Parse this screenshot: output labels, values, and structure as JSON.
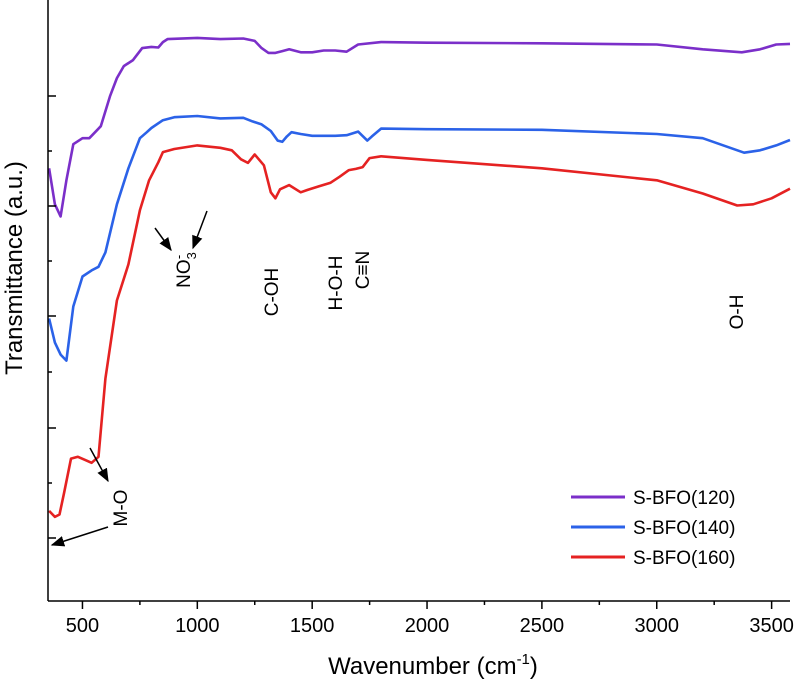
{
  "chart_data": {
    "type": "line",
    "title": "",
    "xlabel": "Wavenumber (cm",
    "xlabel_sup": "-1",
    "xlabel_close": ")",
    "ylabel": "Transmittance (a.u.)",
    "xlim": [
      350,
      3580
    ],
    "ylim": [
      0,
      100
    ],
    "x_ticks": [
      500,
      1000,
      1500,
      2000,
      2500,
      3000,
      3500
    ],
    "y_ticks_show_labels": false,
    "legend_position": "bottom-right",
    "series": [
      {
        "name": "S-BFO(120)",
        "color": "#7b2fc9",
        "points": [
          [
            355,
            72
          ],
          [
            380,
            66
          ],
          [
            405,
            64
          ],
          [
            430,
            70
          ],
          [
            460,
            76
          ],
          [
            500,
            77
          ],
          [
            530,
            77
          ],
          [
            555,
            78
          ],
          [
            580,
            79
          ],
          [
            620,
            84
          ],
          [
            650,
            87
          ],
          [
            680,
            89
          ],
          [
            720,
            90
          ],
          [
            760,
            92
          ],
          [
            800,
            92.2
          ],
          [
            830,
            92.1
          ],
          [
            850,
            93
          ],
          [
            870,
            93.5
          ],
          [
            1000,
            93.7
          ],
          [
            1100,
            93.5
          ],
          [
            1200,
            93.6
          ],
          [
            1250,
            93.2
          ],
          [
            1280,
            92
          ],
          [
            1310,
            91.2
          ],
          [
            1340,
            91.2
          ],
          [
            1370,
            91.5
          ],
          [
            1400,
            91.8
          ],
          [
            1450,
            91.3
          ],
          [
            1500,
            91.3
          ],
          [
            1550,
            91.6
          ],
          [
            1600,
            91.6
          ],
          [
            1650,
            91.4
          ],
          [
            1700,
            92.6
          ],
          [
            1800,
            93
          ],
          [
            2000,
            92.9
          ],
          [
            2500,
            92.8
          ],
          [
            3000,
            92.6
          ],
          [
            3200,
            91.8
          ],
          [
            3370,
            91.3
          ],
          [
            3450,
            91.8
          ],
          [
            3520,
            92.6
          ],
          [
            3580,
            92.7
          ]
        ]
      },
      {
        "name": "S-BFO(140)",
        "color": "#2b62e8",
        "points": [
          [
            355,
            47
          ],
          [
            380,
            43
          ],
          [
            405,
            41
          ],
          [
            430,
            40
          ],
          [
            460,
            49
          ],
          [
            500,
            54
          ],
          [
            540,
            55
          ],
          [
            570,
            55.6
          ],
          [
            600,
            58
          ],
          [
            650,
            66
          ],
          [
            700,
            72
          ],
          [
            750,
            77
          ],
          [
            780,
            78
          ],
          [
            800,
            78.7
          ],
          [
            850,
            80
          ],
          [
            900,
            80.5
          ],
          [
            1000,
            80.7
          ],
          [
            1100,
            80.3
          ],
          [
            1200,
            80.4
          ],
          [
            1240,
            79.8
          ],
          [
            1280,
            79.3
          ],
          [
            1320,
            78.2
          ],
          [
            1350,
            76.6
          ],
          [
            1370,
            76.4
          ],
          [
            1390,
            77.3
          ],
          [
            1410,
            78
          ],
          [
            1450,
            77.7
          ],
          [
            1500,
            77.4
          ],
          [
            1550,
            77.4
          ],
          [
            1600,
            77.4
          ],
          [
            1650,
            77.5
          ],
          [
            1700,
            78.1
          ],
          [
            1740,
            76.6
          ],
          [
            1760,
            77.3
          ],
          [
            1800,
            78.6
          ],
          [
            2000,
            78.5
          ],
          [
            2500,
            78.4
          ],
          [
            3000,
            77.7
          ],
          [
            3200,
            77
          ],
          [
            3380,
            74.6
          ],
          [
            3450,
            75
          ],
          [
            3520,
            75.8
          ],
          [
            3580,
            76.7
          ]
        ]
      },
      {
        "name": "S-BFO(160)",
        "color": "#e52222",
        "points": [
          [
            355,
            15
          ],
          [
            380,
            14
          ],
          [
            400,
            14.4
          ],
          [
            420,
            18
          ],
          [
            450,
            23.7
          ],
          [
            480,
            24
          ],
          [
            510,
            23.5
          ],
          [
            540,
            23
          ],
          [
            570,
            24
          ],
          [
            600,
            37
          ],
          [
            650,
            50
          ],
          [
            700,
            56
          ],
          [
            750,
            65
          ],
          [
            790,
            70
          ],
          [
            810,
            71.5
          ],
          [
            830,
            73
          ],
          [
            850,
            74.7
          ],
          [
            900,
            75.2
          ],
          [
            1000,
            75.8
          ],
          [
            1100,
            75.4
          ],
          [
            1150,
            75
          ],
          [
            1190,
            73.5
          ],
          [
            1220,
            72.9
          ],
          [
            1250,
            74.3
          ],
          [
            1290,
            72.5
          ],
          [
            1320,
            68
          ],
          [
            1340,
            67
          ],
          [
            1360,
            68.5
          ],
          [
            1400,
            69.2
          ],
          [
            1450,
            68
          ],
          [
            1480,
            68.4
          ],
          [
            1530,
            69
          ],
          [
            1580,
            69.6
          ],
          [
            1620,
            70.6
          ],
          [
            1660,
            71.7
          ],
          [
            1690,
            71.9
          ],
          [
            1720,
            72.2
          ],
          [
            1750,
            73.7
          ],
          [
            1800,
            74
          ],
          [
            2000,
            73.4
          ],
          [
            2500,
            72
          ],
          [
            3000,
            70
          ],
          [
            3200,
            67.8
          ],
          [
            3350,
            65.8
          ],
          [
            3420,
            66
          ],
          [
            3500,
            67
          ],
          [
            3580,
            68.6
          ]
        ]
      }
    ],
    "annotations": [
      {
        "name": "annotation-m-o",
        "text": "M-O"
      },
      {
        "name": "annotation-no3",
        "text": "NO",
        "sub": "3",
        "sup": "-"
      },
      {
        "name": "annotation-c-oh",
        "text": "C-OH"
      },
      {
        "name": "annotation-h-o-h",
        "text": "H-O-H"
      },
      {
        "name": "annotation-c-n",
        "text": "C≡N"
      },
      {
        "name": "annotation-o-h",
        "text": "O-H"
      }
    ]
  }
}
